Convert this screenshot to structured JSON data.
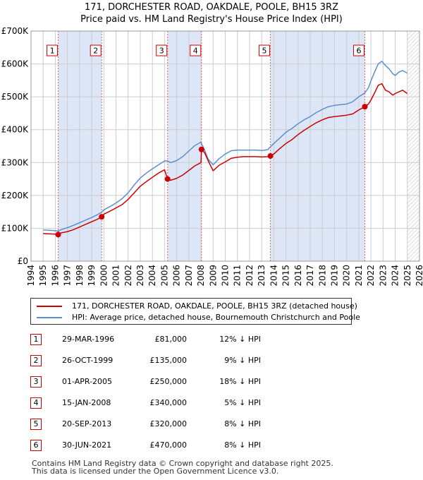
{
  "title_line1": "171, DORCHESTER ROAD, OAKDALE, POOLE, BH15 3RZ",
  "title_line2": "Price paid vs. HM Land Registry's House Price Index (HPI)",
  "colors": {
    "property": "#cc0000",
    "hpi": "#5b8fd0",
    "shade": "#dde6f6",
    "vline": "#e06666"
  },
  "chart_data": {
    "type": "line",
    "xlim": [
      1994.0,
      2026.0
    ],
    "ylim": [
      0,
      700000
    ],
    "yticks": [
      0,
      100000,
      200000,
      300000,
      400000,
      500000,
      600000,
      700000
    ],
    "ytick_labels": [
      "£0",
      "£100K",
      "£200K",
      "£300K",
      "£400K",
      "£500K",
      "£600K",
      "£700K"
    ],
    "xticks": [
      "1994",
      "1995",
      "1996",
      "1997",
      "1998",
      "1999",
      "2000",
      "2001",
      "2002",
      "2003",
      "2004",
      "2005",
      "2006",
      "2007",
      "2008",
      "2009",
      "2010",
      "2011",
      "2012",
      "2013",
      "2014",
      "2015",
      "2016",
      "2017",
      "2018",
      "2019",
      "2020",
      "2021",
      "2022",
      "2023",
      "2024",
      "2025",
      "2026"
    ],
    "data_end": 2025.0,
    "shaded_spans": [
      [
        1996.24,
        1999.82
      ],
      [
        2005.25,
        2008.04
      ],
      [
        2013.72,
        2021.5
      ]
    ],
    "series": [
      {
        "name": "171, DORCHESTER ROAD, OAKDALE, POOLE, BH15 3RZ (detached house)",
        "x": [
          1995.0,
          1995.5,
          1996.0,
          1996.24,
          1996.5,
          1997.0,
          1997.5,
          1998.0,
          1998.5,
          1999.0,
          1999.5,
          1999.82,
          2000.0,
          2000.5,
          2001.0,
          2001.5,
          2002.0,
          2002.5,
          2003.0,
          2003.5,
          2004.0,
          2004.5,
          2005.0,
          2005.25,
          2005.5,
          2006.0,
          2006.5,
          2007.0,
          2007.5,
          2008.0,
          2008.04,
          2008.3,
          2008.6,
          2009.0,
          2009.5,
          2010.0,
          2010.5,
          2011.0,
          2011.5,
          2012.0,
          2012.5,
          2013.0,
          2013.5,
          2013.72,
          2014.0,
          2014.5,
          2015.0,
          2015.5,
          2016.0,
          2016.5,
          2017.0,
          2017.5,
          2018.0,
          2018.5,
          2019.0,
          2019.5,
          2020.0,
          2020.5,
          2021.0,
          2021.5,
          2021.8,
          2022.0,
          2022.3,
          2022.6,
          2022.9,
          2023.2,
          2023.5,
          2023.8,
          2024.0,
          2024.3,
          2024.6,
          2025.0
        ],
        "y": [
          84000,
          83000,
          82000,
          81000,
          86000,
          90000,
          96000,
          104000,
          112000,
          120000,
          128000,
          135000,
          143000,
          152000,
          162000,
          172000,
          188000,
          208000,
          228000,
          242000,
          255000,
          268000,
          278000,
          250000,
          246000,
          252000,
          262000,
          276000,
          290000,
          300000,
          340000,
          330000,
          305000,
          275000,
          292000,
          302000,
          313000,
          316000,
          318000,
          318000,
          318000,
          317000,
          318000,
          320000,
          326000,
          343000,
          358000,
          370000,
          385000,
          398000,
          410000,
          421000,
          430000,
          437000,
          440000,
          442000,
          444000,
          448000,
          460000,
          470000,
          478000,
          490000,
          512000,
          535000,
          540000,
          520000,
          515000,
          505000,
          510000,
          515000,
          520000,
          510000
        ]
      },
      {
        "name": "HPI: Average price, detached house, Bournemouth Christchurch and Poole",
        "x": [
          1995.0,
          1995.5,
          1996.0,
          1996.24,
          1996.5,
          1997.0,
          1997.5,
          1998.0,
          1998.5,
          1999.0,
          1999.5,
          1999.82,
          2000.0,
          2000.5,
          2001.0,
          2001.5,
          2002.0,
          2002.5,
          2003.0,
          2003.5,
          2004.0,
          2004.5,
          2005.0,
          2005.25,
          2005.5,
          2006.0,
          2006.5,
          2007.0,
          2007.5,
          2008.0,
          2008.04,
          2008.3,
          2008.6,
          2009.0,
          2009.5,
          2010.0,
          2010.5,
          2011.0,
          2011.5,
          2012.0,
          2012.5,
          2013.0,
          2013.5,
          2013.72,
          2014.0,
          2014.5,
          2015.0,
          2015.5,
          2016.0,
          2016.5,
          2017.0,
          2017.5,
          2018.0,
          2018.5,
          2019.0,
          2019.5,
          2020.0,
          2020.5,
          2021.0,
          2021.5,
          2021.8,
          2022.0,
          2022.3,
          2022.6,
          2022.9,
          2023.2,
          2023.5,
          2023.8,
          2024.0,
          2024.3,
          2024.6,
          2025.0
        ],
        "y": [
          95000,
          94000,
          93000,
          92000,
          96000,
          102000,
          109000,
          117000,
          125000,
          133000,
          142000,
          149000,
          156000,
          166000,
          177000,
          190000,
          208000,
          232000,
          253000,
          268000,
          281000,
          293000,
          305000,
          305000,
          300000,
          306000,
          318000,
          335000,
          352000,
          362000,
          358000,
          338000,
          310000,
          293000,
          312000,
          326000,
          336000,
          338000,
          338000,
          338000,
          338000,
          337000,
          339000,
          348000,
          358000,
          375000,
          392000,
          404000,
          418000,
          430000,
          440000,
          452000,
          462000,
          470000,
          474000,
          476000,
          478000,
          485000,
          500000,
          512000,
          528000,
          548000,
          575000,
          600000,
          608000,
          595000,
          585000,
          570000,
          565000,
          575000,
          580000,
          572000
        ]
      }
    ],
    "sales": [
      {
        "num": "1",
        "date": "29-MAR-1996",
        "price": "£81,000",
        "hpi": "12% ↓ HPI",
        "x": 1996.24,
        "y": 81000
      },
      {
        "num": "2",
        "date": "26-OCT-1999",
        "price": "£135,000",
        "hpi": "9% ↓ HPI",
        "x": 1999.82,
        "y": 135000
      },
      {
        "num": "3",
        "date": "01-APR-2005",
        "price": "£250,000",
        "hpi": "18% ↓ HPI",
        "x": 2005.25,
        "y": 250000
      },
      {
        "num": "4",
        "date": "15-JAN-2008",
        "price": "£340,000",
        "hpi": "5% ↓ HPI",
        "x": 2008.04,
        "y": 340000
      },
      {
        "num": "5",
        "date": "20-SEP-2013",
        "price": "£320,000",
        "hpi": "8% ↓ HPI",
        "x": 2013.72,
        "y": 320000
      },
      {
        "num": "6",
        "date": "30-JUN-2021",
        "price": "£470,000",
        "hpi": "8% ↓ HPI",
        "x": 2021.5,
        "y": 470000
      }
    ]
  },
  "footer_line1": "Contains HM Land Registry data © Crown copyright and database right 2025.",
  "footer_line2": "This data is licensed under the Open Government Licence v3.0."
}
